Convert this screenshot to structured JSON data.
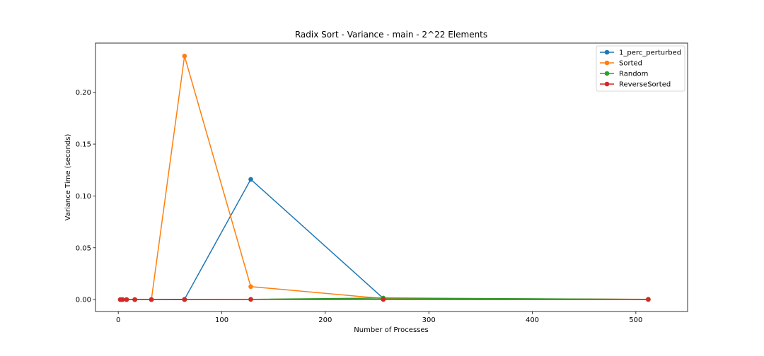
{
  "chart_data": {
    "type": "line",
    "title": "Radix Sort - Variance - main - 2^22 Elements",
    "xlabel": "Number of Processes",
    "ylabel": "Variance Time (seconds)",
    "xlim": [
      -22,
      550
    ],
    "ylim": [
      -0.0115,
      0.2475
    ],
    "xticks": [
      0,
      100,
      200,
      300,
      400,
      500
    ],
    "yticks": [
      0.0,
      0.05,
      0.1,
      0.15,
      0.2
    ],
    "ytick_labels": [
      "0.00",
      "0.05",
      "0.10",
      "0.15",
      "0.20"
    ],
    "grid": false,
    "legend_position": "top-right",
    "x": [
      2,
      4,
      8,
      16,
      32,
      64,
      128,
      256,
      512
    ],
    "series": [
      {
        "name": "1_perc_perturbed",
        "color": "#1f77b4",
        "values": [
          0.0,
          0.0,
          0.0,
          0.0,
          0.0,
          0.0003,
          0.116,
          0.0012,
          0.0002
        ]
      },
      {
        "name": "Sorted",
        "color": "#ff7f0e",
        "values": [
          0.0,
          0.0,
          0.0,
          0.0,
          0.0,
          0.235,
          0.0125,
          0.001,
          0.0003
        ]
      },
      {
        "name": "Random",
        "color": "#2ca02c",
        "values": [
          0.0,
          0.0,
          0.0,
          0.0,
          0.0,
          0.0,
          0.0002,
          0.0015,
          0.0002
        ]
      },
      {
        "name": "ReverseSorted",
        "color": "#d62728",
        "values": [
          0.0,
          0.0,
          0.0,
          0.0,
          0.0,
          0.0,
          0.0002,
          0.0001,
          0.0001
        ]
      }
    ]
  }
}
